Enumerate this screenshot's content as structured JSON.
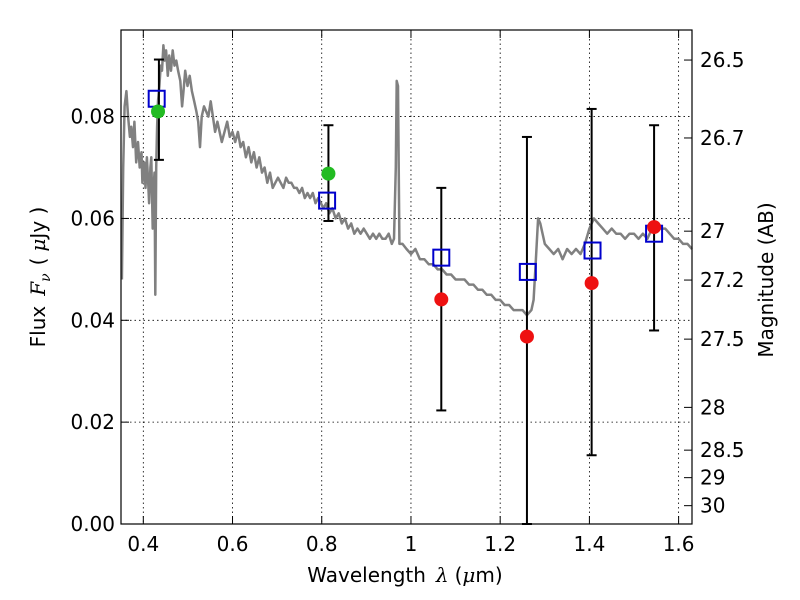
{
  "chart_data": {
    "type": "scatter",
    "title": "",
    "xlabel": "Wavelength",
    "xlabel_symbol": "λ",
    "xlabel_unit_open": "(",
    "xlabel_unit_mu": "μ",
    "xlabel_unit_rest": "m)",
    "ylabel_prefix": "Flux",
    "ylabel_symbol_base": "F",
    "ylabel_symbol_sub": "ν",
    "ylabel_unit_open": "(",
    "ylabel_unit_mu": "μ",
    "ylabel_unit_rest": "Jy )",
    "y2label": "Magnitude (AB)",
    "xlim": [
      0.35,
      1.63
    ],
    "ylim": [
      0.0,
      0.097
    ],
    "x_ticks": [
      0.4,
      0.6,
      0.8,
      1.0,
      1.2,
      1.4,
      1.6
    ],
    "x_tick_labels": [
      "0.4",
      "0.6",
      "0.8",
      "1",
      "1.2",
      "1.4",
      "1.6"
    ],
    "y_ticks": [
      0.0,
      0.02,
      0.04,
      0.06,
      0.08
    ],
    "y_tick_labels": [
      "0.00",
      "0.02",
      "0.04",
      "0.06",
      "0.08"
    ],
    "mag_ticks": [
      {
        "label": "26.5",
        "flux": 0.0911
      },
      {
        "label": "26.7",
        "flux": 0.0758
      },
      {
        "label": "27",
        "flux": 0.0575
      },
      {
        "label": "27.2",
        "flux": 0.0479
      },
      {
        "label": "27.5",
        "flux": 0.0363
      },
      {
        "label": "28",
        "flux": 0.0229
      },
      {
        "label": "28.5",
        "flux": 0.0145
      },
      {
        "label": "29",
        "flux": 0.0091
      },
      {
        "label": "30",
        "flux": 0.0036
      }
    ],
    "grid": true,
    "series": [
      {
        "kind": "line",
        "color": "#808080",
        "points": [
          [
            0.352,
            0.048
          ],
          [
            0.355,
            0.07
          ],
          [
            0.358,
            0.082
          ],
          [
            0.362,
            0.085
          ],
          [
            0.366,
            0.08
          ],
          [
            0.37,
            0.076
          ],
          [
            0.373,
            0.078
          ],
          [
            0.377,
            0.074
          ],
          [
            0.38,
            0.079
          ],
          [
            0.384,
            0.071
          ],
          [
            0.388,
            0.075
          ],
          [
            0.392,
            0.07
          ],
          [
            0.396,
            0.073
          ],
          [
            0.398,
            0.067
          ],
          [
            0.402,
            0.071
          ],
          [
            0.405,
            0.066
          ],
          [
            0.408,
            0.072
          ],
          [
            0.411,
            0.067
          ],
          [
            0.413,
            0.063
          ],
          [
            0.416,
            0.07
          ],
          [
            0.418,
            0.072
          ],
          [
            0.421,
            0.058
          ],
          [
            0.423,
            0.066
          ],
          [
            0.425,
            0.069
          ],
          [
            0.427,
            0.045
          ],
          [
            0.429,
            0.07
          ],
          [
            0.431,
            0.078
          ],
          [
            0.433,
            0.083
          ],
          [
            0.436,
            0.086
          ],
          [
            0.439,
            0.09
          ],
          [
            0.442,
            0.089
          ],
          [
            0.445,
            0.094
          ],
          [
            0.448,
            0.091
          ],
          [
            0.451,
            0.093
          ],
          [
            0.455,
            0.088
          ],
          [
            0.458,
            0.092
          ],
          [
            0.462,
            0.089
          ],
          [
            0.466,
            0.093
          ],
          [
            0.47,
            0.09
          ],
          [
            0.474,
            0.091
          ],
          [
            0.478,
            0.089
          ],
          [
            0.483,
            0.087
          ],
          [
            0.487,
            0.082
          ],
          [
            0.49,
            0.085
          ],
          [
            0.494,
            0.089
          ],
          [
            0.499,
            0.086
          ],
          [
            0.504,
            0.088
          ],
          [
            0.509,
            0.085
          ],
          [
            0.514,
            0.083
          ],
          [
            0.519,
            0.081
          ],
          [
            0.523,
            0.079
          ],
          [
            0.527,
            0.074
          ],
          [
            0.531,
            0.08
          ],
          [
            0.536,
            0.082
          ],
          [
            0.541,
            0.081
          ],
          [
            0.546,
            0.08
          ],
          [
            0.551,
            0.083
          ],
          [
            0.556,
            0.08
          ],
          [
            0.561,
            0.077
          ],
          [
            0.566,
            0.079
          ],
          [
            0.571,
            0.077
          ],
          [
            0.576,
            0.075
          ],
          [
            0.582,
            0.077
          ],
          [
            0.588,
            0.079
          ],
          [
            0.594,
            0.076
          ],
          [
            0.6,
            0.077
          ],
          [
            0.606,
            0.075
          ],
          [
            0.612,
            0.077
          ],
          [
            0.618,
            0.074
          ],
          [
            0.624,
            0.075
          ],
          [
            0.63,
            0.072
          ],
          [
            0.636,
            0.074
          ],
          [
            0.642,
            0.071
          ],
          [
            0.648,
            0.073
          ],
          [
            0.654,
            0.07
          ],
          [
            0.66,
            0.072
          ],
          [
            0.666,
            0.069
          ],
          [
            0.672,
            0.07
          ],
          [
            0.678,
            0.067
          ],
          [
            0.684,
            0.069
          ],
          [
            0.69,
            0.066
          ],
          [
            0.696,
            0.067
          ],
          [
            0.702,
            0.068
          ],
          [
            0.708,
            0.067
          ],
          [
            0.714,
            0.066
          ],
          [
            0.72,
            0.068
          ],
          [
            0.726,
            0.067
          ],
          [
            0.732,
            0.067
          ],
          [
            0.738,
            0.066
          ],
          [
            0.744,
            0.066
          ],
          [
            0.75,
            0.065
          ],
          [
            0.756,
            0.066
          ],
          [
            0.762,
            0.064
          ],
          [
            0.768,
            0.065
          ],
          [
            0.774,
            0.064
          ],
          [
            0.78,
            0.065
          ],
          [
            0.786,
            0.063
          ],
          [
            0.792,
            0.064
          ],
          [
            0.798,
            0.063
          ],
          [
            0.804,
            0.062
          ],
          [
            0.81,
            0.063
          ],
          [
            0.817,
            0.061
          ],
          [
            0.824,
            0.062
          ],
          [
            0.831,
            0.06
          ],
          [
            0.838,
            0.061
          ],
          [
            0.845,
            0.059
          ],
          [
            0.852,
            0.06
          ],
          [
            0.859,
            0.058
          ],
          [
            0.866,
            0.059
          ],
          [
            0.873,
            0.057
          ],
          [
            0.88,
            0.058
          ],
          [
            0.887,
            0.057
          ],
          [
            0.894,
            0.058
          ],
          [
            0.901,
            0.057
          ],
          [
            0.908,
            0.056
          ],
          [
            0.915,
            0.057
          ],
          [
            0.922,
            0.056
          ],
          [
            0.929,
            0.057
          ],
          [
            0.936,
            0.056
          ],
          [
            0.943,
            0.056
          ],
          [
            0.95,
            0.057
          ],
          [
            0.957,
            0.055
          ],
          [
            0.962,
            0.056
          ],
          [
            0.966,
            0.07
          ],
          [
            0.968,
            0.087
          ],
          [
            0.971,
            0.086
          ],
          [
            0.974,
            0.055
          ],
          [
            0.981,
            0.055
          ],
          [
            0.99,
            0.054
          ],
          [
            1.0,
            0.053
          ],
          [
            1.01,
            0.054
          ],
          [
            1.02,
            0.052
          ],
          [
            1.03,
            0.052
          ],
          [
            1.04,
            0.051
          ],
          [
            1.05,
            0.051
          ],
          [
            1.06,
            0.05
          ],
          [
            1.07,
            0.05
          ],
          [
            1.08,
            0.049
          ],
          [
            1.09,
            0.049
          ],
          [
            1.1,
            0.048
          ],
          [
            1.11,
            0.048
          ],
          [
            1.12,
            0.048
          ],
          [
            1.13,
            0.047
          ],
          [
            1.14,
            0.047
          ],
          [
            1.15,
            0.046
          ],
          [
            1.16,
            0.046
          ],
          [
            1.17,
            0.045
          ],
          [
            1.18,
            0.045
          ],
          [
            1.19,
            0.044
          ],
          [
            1.2,
            0.044
          ],
          [
            1.21,
            0.043
          ],
          [
            1.22,
            0.043
          ],
          [
            1.23,
            0.042
          ],
          [
            1.24,
            0.042
          ],
          [
            1.25,
            0.042
          ],
          [
            1.26,
            0.041
          ],
          [
            1.27,
            0.042
          ],
          [
            1.275,
            0.044
          ],
          [
            1.28,
            0.052
          ],
          [
            1.285,
            0.06
          ],
          [
            1.29,
            0.059
          ],
          [
            1.3,
            0.055
          ],
          [
            1.31,
            0.054
          ],
          [
            1.32,
            0.053
          ],
          [
            1.33,
            0.054
          ],
          [
            1.34,
            0.052
          ],
          [
            1.35,
            0.054
          ],
          [
            1.36,
            0.053
          ],
          [
            1.37,
            0.054
          ],
          [
            1.38,
            0.053
          ],
          [
            1.39,
            0.055
          ],
          [
            1.4,
            0.058
          ],
          [
            1.41,
            0.06
          ],
          [
            1.42,
            0.059
          ],
          [
            1.43,
            0.058
          ],
          [
            1.44,
            0.057
          ],
          [
            1.45,
            0.058
          ],
          [
            1.46,
            0.057
          ],
          [
            1.47,
            0.057
          ],
          [
            1.48,
            0.056
          ],
          [
            1.49,
            0.057
          ],
          [
            1.5,
            0.057
          ],
          [
            1.51,
            0.056
          ],
          [
            1.52,
            0.057
          ],
          [
            1.53,
            0.056
          ],
          [
            1.54,
            0.058
          ],
          [
            1.55,
            0.059
          ],
          [
            1.56,
            0.058
          ],
          [
            1.57,
            0.058
          ],
          [
            1.58,
            0.057
          ],
          [
            1.59,
            0.056
          ],
          [
            1.6,
            0.056
          ],
          [
            1.61,
            0.055
          ],
          [
            1.62,
            0.055
          ],
          [
            1.63,
            0.054
          ]
        ]
      },
      {
        "kind": "errorbar",
        "color": "#000000",
        "points": [
          {
            "x": 0.435,
            "ylo": 0.0715,
            "yhi": 0.0912
          },
          {
            "x": 0.815,
            "ylo": 0.0595,
            "yhi": 0.0783
          },
          {
            "x": 1.068,
            "ylo": 0.0223,
            "yhi": 0.066
          },
          {
            "x": 1.26,
            "ylo": 0.0,
            "yhi": 0.076
          },
          {
            "x": 1.405,
            "ylo": 0.0135,
            "yhi": 0.0815
          },
          {
            "x": 1.545,
            "ylo": 0.038,
            "yhi": 0.0783
          }
        ]
      },
      {
        "kind": "open-square",
        "color": "#0000cc",
        "points": [
          [
            0.43,
            0.0835
          ],
          [
            0.812,
            0.0635
          ],
          [
            1.068,
            0.0523
          ],
          [
            1.262,
            0.0495
          ],
          [
            1.407,
            0.0537
          ],
          [
            1.545,
            0.057
          ]
        ]
      },
      {
        "kind": "filled-circle",
        "color": "#22bb22",
        "points": [
          [
            0.433,
            0.081
          ],
          [
            0.815,
            0.0688
          ]
        ]
      },
      {
        "kind": "filled-circle",
        "color": "#ee1111",
        "points": [
          [
            1.068,
            0.0441
          ],
          [
            1.26,
            0.0368
          ],
          [
            1.405,
            0.0473
          ],
          [
            1.545,
            0.0583
          ]
        ]
      }
    ]
  }
}
